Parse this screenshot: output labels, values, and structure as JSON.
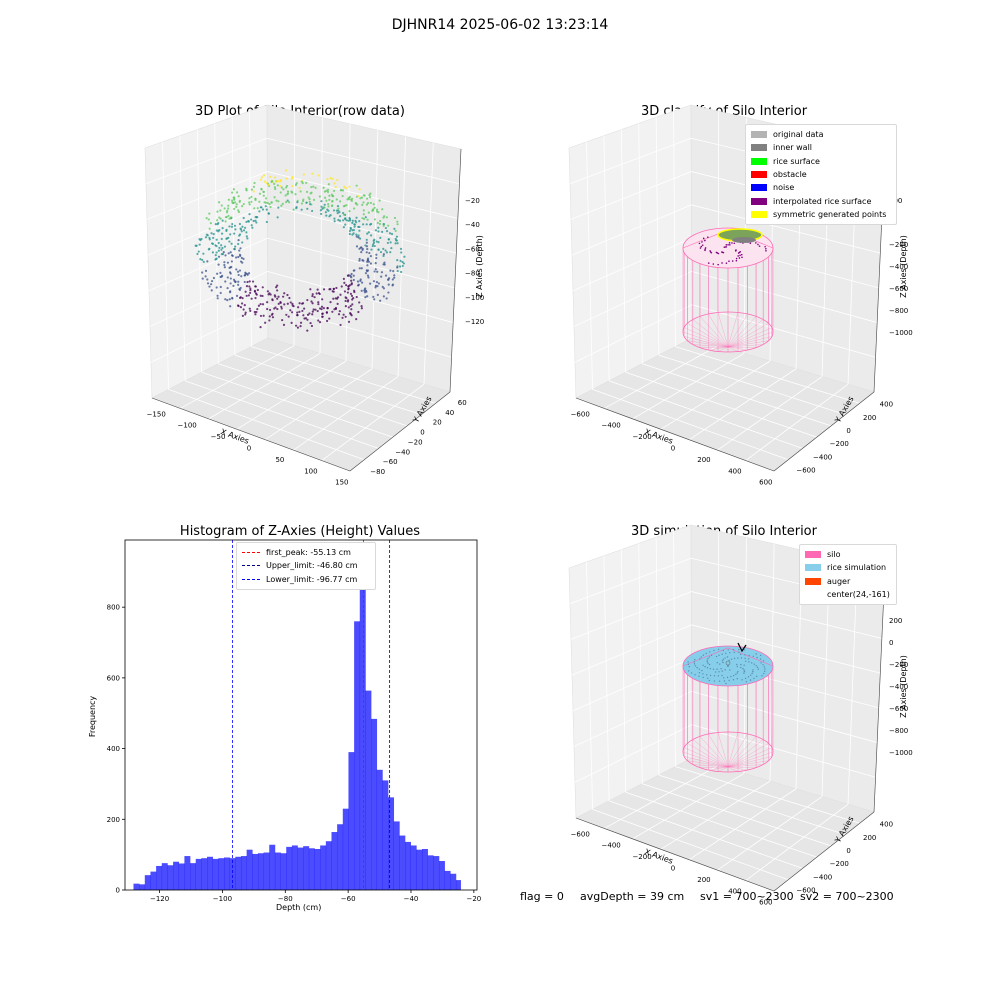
{
  "suptitle": "DJHNR14 2025-06-02 13:23:14",
  "panels": {
    "raw": {
      "title": "3D Plot of Silo Interior(row data)",
      "xlabel": "X Axies",
      "ylabel": "Y Axies",
      "zlabel": "Z Axies (Depth)",
      "xticks": [
        "−150",
        "−100",
        "−50",
        "0",
        "50",
        "100",
        "150"
      ],
      "yticks": [
        "−80",
        "−60",
        "−40",
        "−20",
        "0",
        "20",
        "40",
        "60"
      ],
      "zticks": [
        "−20",
        "−40",
        "−60",
        "−80",
        "−100",
        "−120"
      ]
    },
    "classify": {
      "title": "3D classify of Silo Interior",
      "xlabel": "X Axies",
      "ylabel": "Y Axies",
      "zlabel": "Z Axies (Depth)",
      "xticks": [
        "−600",
        "−400",
        "−200",
        "0",
        "200",
        "400",
        "600"
      ],
      "yticks": [
        "−600",
        "−400",
        "−200",
        "0",
        "200",
        "400"
      ],
      "zticks": [
        "200",
        "0",
        "−200",
        "−400",
        "−600",
        "−800",
        "−1000"
      ],
      "legend": [
        {
          "label": "original data",
          "color": "#b3b3b3"
        },
        {
          "label": "inner wall",
          "color": "#808080"
        },
        {
          "label": "rice surface",
          "color": "#00ff00"
        },
        {
          "label": "obstacle",
          "color": "#ff0000"
        },
        {
          "label": "noise",
          "color": "#0000ff"
        },
        {
          "label": "interpolated rice surface",
          "color": "#800080"
        },
        {
          "label": "symmetric generated points",
          "color": "#ffff00"
        }
      ]
    },
    "simulation": {
      "title": "3D simulation of Silo Interior",
      "xlabel": "X Axies",
      "ylabel": "Y Axies",
      "zlabel": "Z Axies (Depth)",
      "xticks": [
        "−600",
        "−400",
        "−200",
        "0",
        "200",
        "400",
        "600"
      ],
      "yticks": [
        "−600",
        "−400",
        "−200",
        "0",
        "200",
        "400"
      ],
      "zticks": [
        "200",
        "0",
        "−200",
        "−400",
        "−600",
        "−800",
        "−1000"
      ],
      "legend": [
        {
          "label": "silo",
          "color": "#ff69b4"
        },
        {
          "label": "rice simulation",
          "color": "#87ceeb"
        },
        {
          "label": "auger",
          "color": "#ff4500"
        },
        {
          "label": "center(24,-161)",
          "color": ""
        }
      ]
    }
  },
  "chart_data": {
    "type": "bar",
    "title": "Histogram of Z-Axies (Height) Values",
    "xlabel": "Depth (cm)",
    "ylabel": "Frequency",
    "xlim": [
      -131,
      -19
    ],
    "ylim": [
      0,
      990
    ],
    "xticks": [
      -120,
      -100,
      -80,
      -60,
      -40,
      -20
    ],
    "xtick_labels": [
      "−120",
      "−100",
      "−80",
      "−60",
      "−40",
      "−20"
    ],
    "yticks": [
      0,
      200,
      400,
      600,
      800
    ],
    "bar_color": "#0000ff",
    "bins": [
      {
        "x0": -128.3,
        "x1": -126.5,
        "v": 18
      },
      {
        "x0": -126.5,
        "x1": -124.7,
        "v": 16
      },
      {
        "x0": -124.7,
        "x1": -122.9,
        "v": 42
      },
      {
        "x0": -122.9,
        "x1": -121.1,
        "v": 52
      },
      {
        "x0": -121.1,
        "x1": -119.3,
        "v": 68
      },
      {
        "x0": -119.3,
        "x1": -117.5,
        "v": 76
      },
      {
        "x0": -117.5,
        "x1": -115.7,
        "v": 70
      },
      {
        "x0": -115.7,
        "x1": -113.9,
        "v": 80
      },
      {
        "x0": -113.9,
        "x1": -112.1,
        "v": 75
      },
      {
        "x0": -112.1,
        "x1": -110.3,
        "v": 96
      },
      {
        "x0": -110.3,
        "x1": -108.5,
        "v": 76
      },
      {
        "x0": -108.5,
        "x1": -106.7,
        "v": 88
      },
      {
        "x0": -106.7,
        "x1": -104.9,
        "v": 90
      },
      {
        "x0": -104.9,
        "x1": -103.1,
        "v": 94
      },
      {
        "x0": -103.1,
        "x1": -101.3,
        "v": 88
      },
      {
        "x0": -101.3,
        "x1": -99.5,
        "v": 90
      },
      {
        "x0": -99.5,
        "x1": -97.7,
        "v": 92
      },
      {
        "x0": -97.7,
        "x1": -95.9,
        "v": 90
      },
      {
        "x0": -95.9,
        "x1": -94.1,
        "v": 94
      },
      {
        "x0": -94.1,
        "x1": -92.3,
        "v": 96
      },
      {
        "x0": -92.3,
        "x1": -90.5,
        "v": 114
      },
      {
        "x0": -90.5,
        "x1": -88.7,
        "v": 102
      },
      {
        "x0": -88.7,
        "x1": -86.9,
        "v": 104
      },
      {
        "x0": -86.9,
        "x1": -85.1,
        "v": 106
      },
      {
        "x0": -85.1,
        "x1": -83.3,
        "v": 128
      },
      {
        "x0": -83.3,
        "x1": -81.5,
        "v": 106
      },
      {
        "x0": -81.5,
        "x1": -79.7,
        "v": 104
      },
      {
        "x0": -79.7,
        "x1": -77.9,
        "v": 122
      },
      {
        "x0": -77.9,
        "x1": -76.1,
        "v": 126
      },
      {
        "x0": -76.1,
        "x1": -74.3,
        "v": 120
      },
      {
        "x0": -74.3,
        "x1": -72.5,
        "v": 124
      },
      {
        "x0": -72.5,
        "x1": -70.7,
        "v": 118
      },
      {
        "x0": -70.7,
        "x1": -68.9,
        "v": 116
      },
      {
        "x0": -68.9,
        "x1": -67.1,
        "v": 126
      },
      {
        "x0": -67.1,
        "x1": -65.3,
        "v": 138
      },
      {
        "x0": -65.3,
        "x1": -63.5,
        "v": 164
      },
      {
        "x0": -63.5,
        "x1": -61.7,
        "v": 186
      },
      {
        "x0": -61.7,
        "x1": -59.9,
        "v": 230
      },
      {
        "x0": -59.9,
        "x1": -58.1,
        "v": 390
      },
      {
        "x0": -58.1,
        "x1": -56.3,
        "v": 760
      },
      {
        "x0": -56.3,
        "x1": -54.5,
        "v": 938
      },
      {
        "x0": -54.5,
        "x1": -52.7,
        "v": 564
      },
      {
        "x0": -52.7,
        "x1": -50.9,
        "v": 484
      },
      {
        "x0": -50.9,
        "x1": -49.1,
        "v": 340
      },
      {
        "x0": -49.1,
        "x1": -47.3,
        "v": 310
      },
      {
        "x0": -47.3,
        "x1": -45.5,
        "v": 262
      },
      {
        "x0": -45.5,
        "x1": -43.7,
        "v": 194
      },
      {
        "x0": -43.7,
        "x1": -41.9,
        "v": 154
      },
      {
        "x0": -41.9,
        "x1": -40.1,
        "v": 136
      },
      {
        "x0": -40.1,
        "x1": -38.3,
        "v": 126
      },
      {
        "x0": -38.3,
        "x1": -36.5,
        "v": 114
      },
      {
        "x0": -36.5,
        "x1": -34.7,
        "v": 116
      },
      {
        "x0": -34.7,
        "x1": -32.9,
        "v": 98
      },
      {
        "x0": -32.9,
        "x1": -31.1,
        "v": 96
      },
      {
        "x0": -31.1,
        "x1": -29.3,
        "v": 82
      },
      {
        "x0": -29.3,
        "x1": -27.5,
        "v": 54
      },
      {
        "x0": -27.5,
        "x1": -25.7,
        "v": 46
      },
      {
        "x0": -25.7,
        "x1": -24.2,
        "v": 28
      }
    ],
    "vlines": [
      {
        "label": "first_peak: -55.13 cm",
        "x": -55.13,
        "color": "#ff0000"
      },
      {
        "label": "Upper_limit: -46.80 cm",
        "x": -46.8,
        "color": "#00008b"
      },
      {
        "label": "Lower_limit: -96.77 cm",
        "x": -96.77,
        "color": "#0000ff"
      }
    ]
  },
  "status": {
    "flag": "flag = 0",
    "avg_depth": "avgDepth = 39 cm",
    "sv1": "sv1 = 700~2300",
    "sv2": "sv2 = 700~2300"
  }
}
